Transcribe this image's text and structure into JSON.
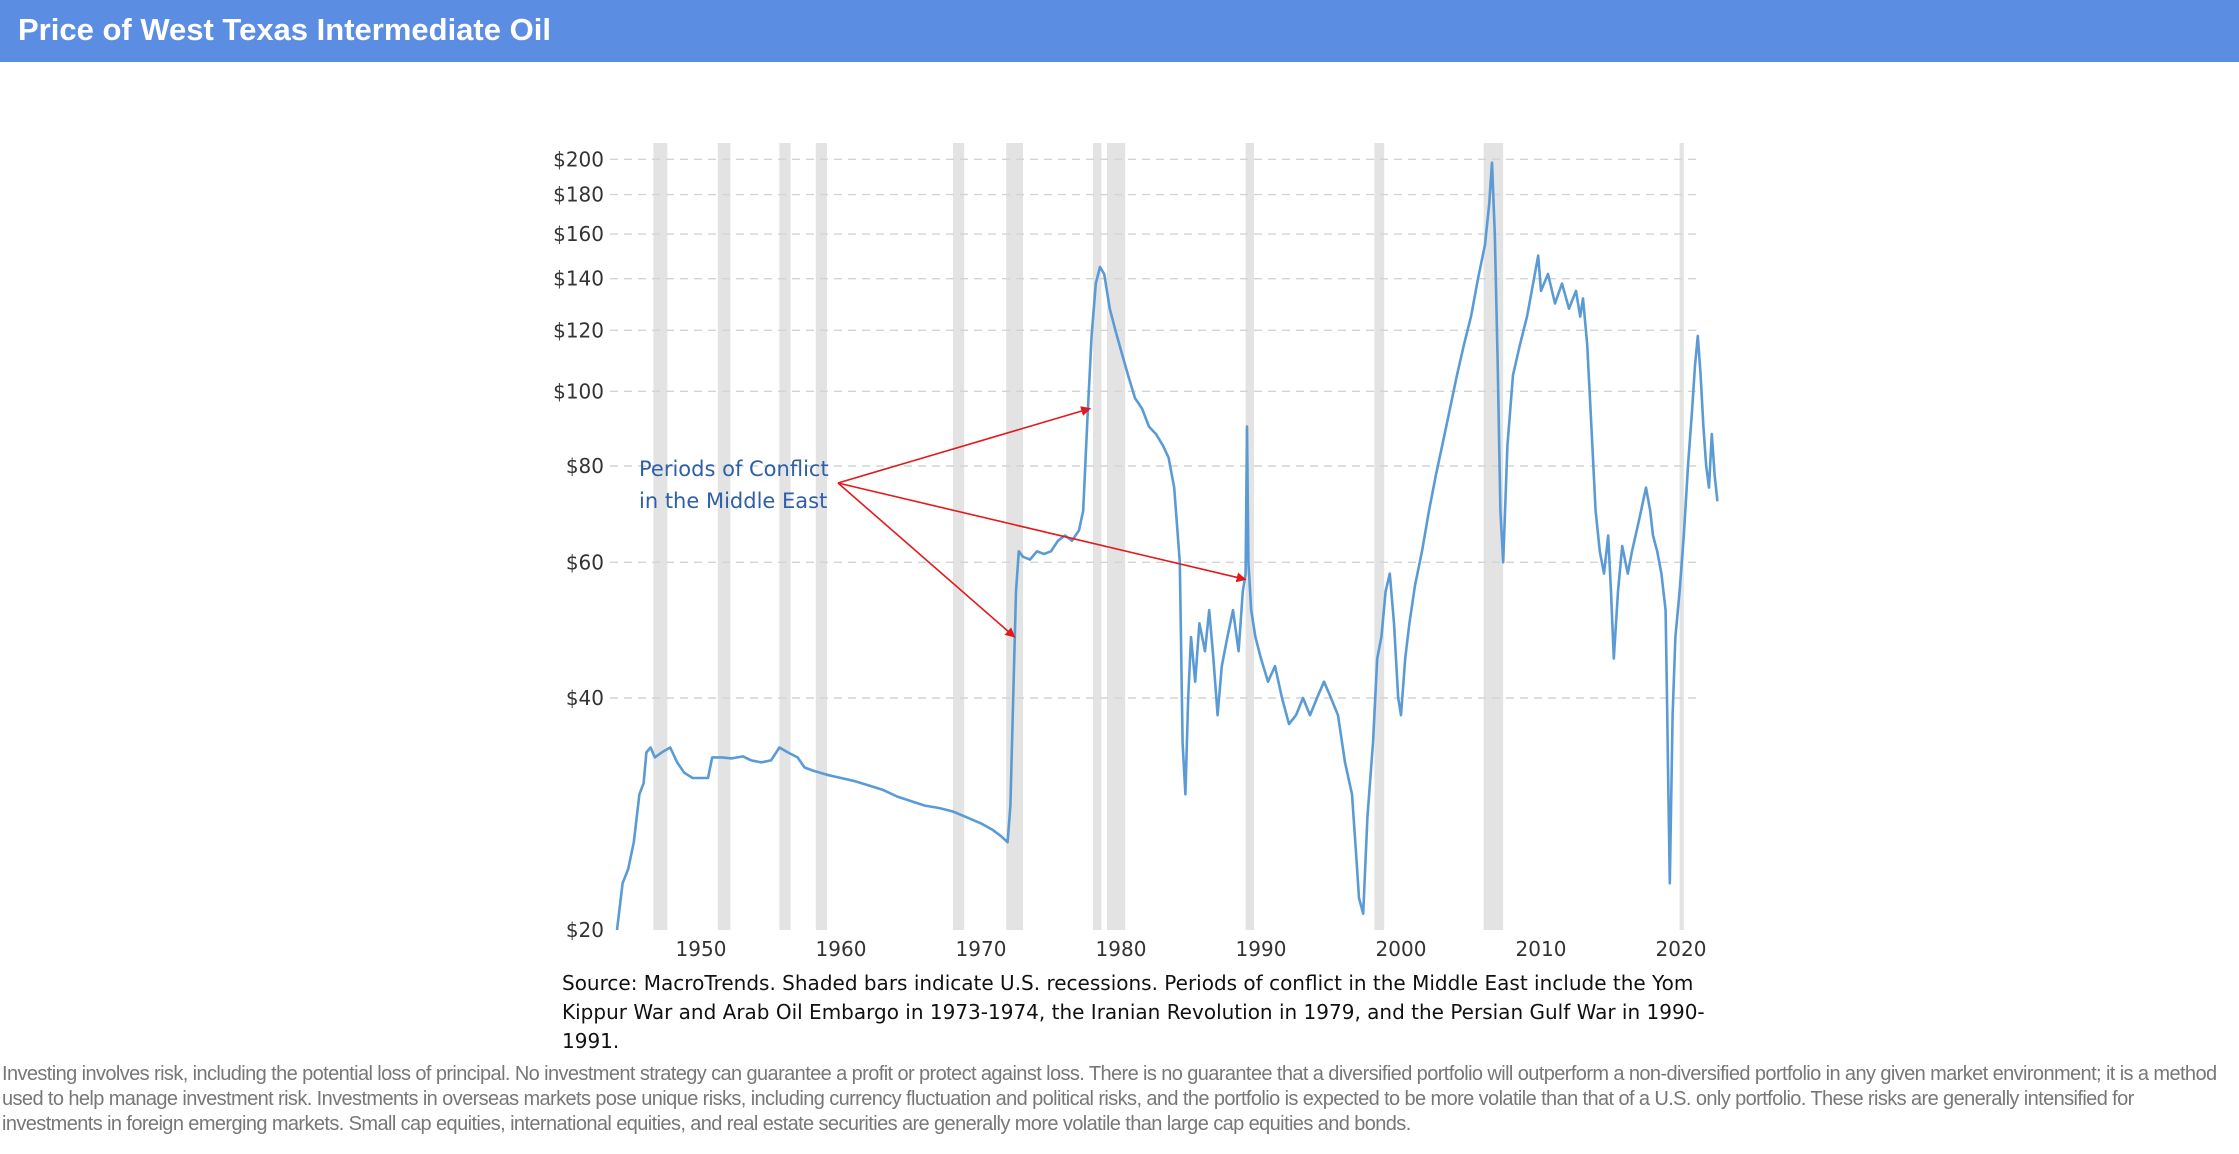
{
  "header": {
    "title": "Price of West Texas Intermediate Oil"
  },
  "colors": {
    "header_bg": "#5b8de3",
    "line": "#5b9bd5",
    "recession_band": "#e3e3e3",
    "arrow": "#e31a1c",
    "annotation": "#2e5fa8"
  },
  "chart_data": {
    "type": "line",
    "title": "",
    "xlabel": "",
    "ylabel": "",
    "y_scale": "log",
    "grid": "horizontal dashed",
    "x_ticks": [
      "1950",
      "1960",
      "1970",
      "1980",
      "1990",
      "2000",
      "2010",
      "2020"
    ],
    "x_tick_values": [
      1950,
      1960,
      1970,
      1980,
      1990,
      2000,
      2010,
      2020
    ],
    "y_ticks": [
      "$20",
      "$40",
      "$60",
      "$80",
      "$100",
      "$120",
      "$140",
      "$160",
      "$180",
      "$200"
    ],
    "y_tick_values": [
      20,
      40,
      60,
      80,
      100,
      120,
      140,
      160,
      180,
      200
    ],
    "xlim": [
      1944,
      2022.7
    ],
    "ylim": [
      20,
      210
    ],
    "recessions": [
      [
        1946.6,
        1947.6
      ],
      [
        1951.2,
        1952.1
      ],
      [
        1955.6,
        1956.4
      ],
      [
        1958.2,
        1959.0
      ],
      [
        1968.0,
        1968.8
      ],
      [
        1971.8,
        1973.0
      ],
      [
        1978.0,
        1978.6
      ],
      [
        1979.0,
        1980.3
      ],
      [
        1988.9,
        1989.5
      ],
      [
        1998.1,
        1998.8
      ],
      [
        2005.9,
        2007.3
      ],
      [
        2019.9,
        2020.2
      ]
    ],
    "series": [
      {
        "values": [
          [
            1944.0,
            20
          ],
          [
            1944.4,
            23
          ],
          [
            1944.8,
            24
          ],
          [
            1945.2,
            26
          ],
          [
            1945.6,
            30
          ],
          [
            1945.9,
            31
          ],
          [
            1946.1,
            34
          ],
          [
            1946.4,
            34.5
          ],
          [
            1946.7,
            33.5
          ],
          [
            1947.2,
            34
          ],
          [
            1947.8,
            34.5
          ],
          [
            1948.3,
            33
          ],
          [
            1948.8,
            32
          ],
          [
            1949.4,
            31.5
          ],
          [
            1950.0,
            31.5
          ],
          [
            1950.5,
            31.5
          ],
          [
            1950.8,
            33.5
          ],
          [
            1951.5,
            33.5
          ],
          [
            1952.2,
            33.4
          ],
          [
            1953.0,
            33.6
          ],
          [
            1953.6,
            33.2
          ],
          [
            1954.3,
            33
          ],
          [
            1955.0,
            33.2
          ],
          [
            1955.6,
            34.5
          ],
          [
            1956.2,
            34
          ],
          [
            1956.9,
            33.5
          ],
          [
            1957.4,
            32.5
          ],
          [
            1958.0,
            32.2
          ],
          [
            1959.0,
            31.8
          ],
          [
            1960.0,
            31.5
          ],
          [
            1961.0,
            31.2
          ],
          [
            1962.0,
            30.8
          ],
          [
            1963.0,
            30.4
          ],
          [
            1964.0,
            29.8
          ],
          [
            1965.0,
            29.4
          ],
          [
            1966.0,
            29
          ],
          [
            1967.0,
            28.8
          ],
          [
            1968.0,
            28.5
          ],
          [
            1969.0,
            28
          ],
          [
            1970.0,
            27.5
          ],
          [
            1970.8,
            27
          ],
          [
            1971.4,
            26.5
          ],
          [
            1971.9,
            26
          ],
          [
            1972.1,
            29
          ],
          [
            1972.3,
            40
          ],
          [
            1972.5,
            55
          ],
          [
            1972.7,
            62
          ],
          [
            1973.0,
            61
          ],
          [
            1973.5,
            60.5
          ],
          [
            1974.0,
            62
          ],
          [
            1974.5,
            61.5
          ],
          [
            1975.0,
            62
          ],
          [
            1975.5,
            64
          ],
          [
            1976.0,
            65
          ],
          [
            1976.5,
            64
          ],
          [
            1977.0,
            66
          ],
          [
            1977.3,
            70
          ],
          [
            1977.6,
            92
          ],
          [
            1977.9,
            118
          ],
          [
            1978.2,
            138
          ],
          [
            1978.5,
            145
          ],
          [
            1978.8,
            142
          ],
          [
            1979.2,
            128
          ],
          [
            1979.6,
            120
          ],
          [
            1980.0,
            113
          ],
          [
            1980.5,
            105
          ],
          [
            1981.0,
            98
          ],
          [
            1981.5,
            95
          ],
          [
            1982.0,
            90
          ],
          [
            1982.5,
            88
          ],
          [
            1983.0,
            85
          ],
          [
            1983.4,
            82
          ],
          [
            1983.8,
            75
          ],
          [
            1984.2,
            60
          ],
          [
            1984.4,
            35
          ],
          [
            1984.6,
            30
          ],
          [
            1984.8,
            40
          ],
          [
            1985.0,
            48
          ],
          [
            1985.3,
            42
          ],
          [
            1985.6,
            50
          ],
          [
            1986.0,
            46
          ],
          [
            1986.3,
            52
          ],
          [
            1986.6,
            45
          ],
          [
            1986.9,
            38
          ],
          [
            1987.2,
            44
          ],
          [
            1987.6,
            48
          ],
          [
            1988.0,
            52
          ],
          [
            1988.4,
            46
          ],
          [
            1988.7,
            55
          ],
          [
            1988.9,
            58
          ],
          [
            1989.0,
            90
          ],
          [
            1989.1,
            60
          ],
          [
            1989.3,
            52
          ],
          [
            1989.6,
            48
          ],
          [
            1990.0,
            45
          ],
          [
            1990.5,
            42
          ],
          [
            1991.0,
            44
          ],
          [
            1991.5,
            40
          ],
          [
            1992.0,
            37
          ],
          [
            1992.5,
            38
          ],
          [
            1993.0,
            40
          ],
          [
            1993.5,
            38
          ],
          [
            1994.0,
            40
          ],
          [
            1994.5,
            42
          ],
          [
            1995.0,
            40
          ],
          [
            1995.5,
            38
          ],
          [
            1996.0,
            33
          ],
          [
            1996.5,
            30
          ],
          [
            1996.8,
            25
          ],
          [
            1997.0,
            22
          ],
          [
            1997.3,
            21
          ],
          [
            1997.6,
            28
          ],
          [
            1998.0,
            35
          ],
          [
            1998.3,
            45
          ],
          [
            1998.6,
            48
          ],
          [
            1998.9,
            55
          ],
          [
            1999.2,
            58
          ],
          [
            1999.5,
            50
          ],
          [
            1999.8,
            40
          ],
          [
            2000.0,
            38
          ],
          [
            2000.3,
            45
          ],
          [
            2000.6,
            50
          ],
          [
            2001.0,
            56
          ],
          [
            2001.5,
            62
          ],
          [
            2002.0,
            70
          ],
          [
            2002.5,
            78
          ],
          [
            2003.0,
            86
          ],
          [
            2003.5,
            95
          ],
          [
            2004.0,
            105
          ],
          [
            2004.5,
            115
          ],
          [
            2005.0,
            125
          ],
          [
            2005.5,
            140
          ],
          [
            2006.0,
            155
          ],
          [
            2006.3,
            175
          ],
          [
            2006.5,
            198
          ],
          [
            2006.7,
            160
          ],
          [
            2006.9,
            110
          ],
          [
            2007.1,
            70
          ],
          [
            2007.3,
            60
          ],
          [
            2007.6,
            85
          ],
          [
            2008.0,
            105
          ],
          [
            2008.5,
            115
          ],
          [
            2009.0,
            125
          ],
          [
            2009.5,
            140
          ],
          [
            2009.8,
            150
          ],
          [
            2010.0,
            135
          ],
          [
            2010.5,
            142
          ],
          [
            2011.0,
            130
          ],
          [
            2011.5,
            138
          ],
          [
            2012.0,
            128
          ],
          [
            2012.5,
            135
          ],
          [
            2012.8,
            125
          ],
          [
            2013.0,
            132
          ],
          [
            2013.3,
            115
          ],
          [
            2013.6,
            90
          ],
          [
            2013.9,
            70
          ],
          [
            2014.2,
            62
          ],
          [
            2014.5,
            58
          ],
          [
            2014.8,
            65
          ],
          [
            2015.0,
            55
          ],
          [
            2015.2,
            45
          ],
          [
            2015.5,
            55
          ],
          [
            2015.8,
            63
          ],
          [
            2016.2,
            58
          ],
          [
            2016.5,
            62
          ],
          [
            2017.0,
            68
          ],
          [
            2017.5,
            75
          ],
          [
            2017.8,
            70
          ],
          [
            2018.0,
            65
          ],
          [
            2018.3,
            62
          ],
          [
            2018.6,
            58
          ],
          [
            2018.9,
            52
          ],
          [
            2019.0,
            40
          ],
          [
            2019.1,
            30
          ],
          [
            2019.2,
            23
          ],
          [
            2019.4,
            38
          ],
          [
            2019.6,
            48
          ],
          [
            2019.9,
            55
          ],
          [
            2020.2,
            65
          ],
          [
            2020.5,
            80
          ],
          [
            2020.8,
            95
          ],
          [
            2021.0,
            108
          ],
          [
            2021.2,
            118
          ],
          [
            2021.4,
            105
          ],
          [
            2021.6,
            90
          ],
          [
            2021.8,
            80
          ],
          [
            2022.0,
            75
          ],
          [
            2022.2,
            88
          ],
          [
            2022.4,
            78
          ],
          [
            2022.6,
            72
          ]
        ]
      }
    ],
    "annotation": "Periods of Conflict in the Middle East",
    "annotation_lines": [
      "Periods of Conflict",
      "in the Middle East"
    ]
  },
  "caption": "Source: MacroTrends. Shaded bars indicate U.S. recessions. Periods of conflict in the Middle East include the Yom Kippur War and Arab Oil Embargo in 1973-1974, the Iranian Revolution in 1979, and the Persian Gulf War in 1990-1991.",
  "disclaimer": "Investing involves risk, including the potential loss of principal. No investment strategy can guarantee a profit or protect against loss. There is no guarantee that a diversified portfolio will outperform a non-diversified portfolio in any given market environment; it is a method used to help manage investment risk. Investments in overseas markets pose unique risks, including currency fluctuation and political risks, and the portfolio is expected to be more volatile than that of a U.S. only portfolio. These risks are generally intensified for investments in foreign emerging markets. Small cap equities, international equities, and real estate securities are generally more volatile than large cap equities and bonds."
}
